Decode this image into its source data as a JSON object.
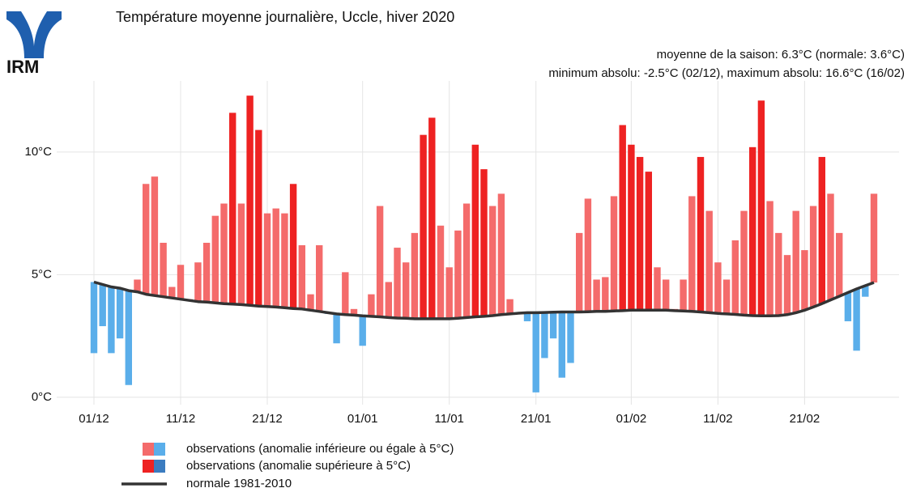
{
  "logo": {
    "text": "IRM",
    "color": "#1f5fae"
  },
  "chart_data": {
    "type": "floating-bar",
    "title": "Température moyenne journalière, Uccle, hiver 2020",
    "subtitle_lines": [
      "moyenne de la saison: 6.3°C (normale: 3.6°C)",
      "minimum absolu: -2.5°C (02/12), maximum absolu: 16.6°C (16/02)"
    ],
    "categories": [
      "01/12",
      null,
      null,
      null,
      null,
      null,
      null,
      null,
      null,
      null,
      "11/12",
      null,
      null,
      null,
      null,
      null,
      null,
      null,
      null,
      null,
      "21/12",
      null,
      null,
      null,
      null,
      null,
      null,
      null,
      null,
      null,
      null,
      "01/01",
      null,
      null,
      null,
      null,
      null,
      null,
      null,
      null,
      null,
      "11/01",
      null,
      null,
      null,
      null,
      null,
      null,
      null,
      null,
      null,
      "21/01",
      null,
      null,
      null,
      null,
      null,
      null,
      null,
      null,
      null,
      null,
      "01/02",
      null,
      null,
      null,
      null,
      null,
      null,
      null,
      null,
      null,
      "11/02",
      null,
      null,
      null,
      null,
      null,
      null,
      null,
      null,
      null,
      "21/02",
      null,
      null,
      null,
      null,
      null,
      null,
      null,
      null
    ],
    "anomaly_threshold": 5,
    "series": [
      {
        "name": "observations (anomalie inférieure ou égale à 5°C)",
        "colors": [
          "#f46b6b",
          "#5aaeea"
        ]
      },
      {
        "name": "observations (anomalie supérieure à 5°C)",
        "colors": [
          "#ee2222",
          "#3b7cc0"
        ]
      },
      {
        "name": "normale 1981-2010",
        "color": "#333333"
      }
    ],
    "observations": [
      1.8,
      2.9,
      1.8,
      2.4,
      0.5,
      4.8,
      8.7,
      9.0,
      6.3,
      4.5,
      5.4,
      4.0,
      5.5,
      6.3,
      7.4,
      7.9,
      11.6,
      7.9,
      12.3,
      10.9,
      7.5,
      7.7,
      7.5,
      8.7,
      6.2,
      4.2,
      6.2,
      3.4,
      2.2,
      5.1,
      3.6,
      2.1,
      4.2,
      7.8,
      4.7,
      6.1,
      5.5,
      6.7,
      10.7,
      11.4,
      7.0,
      5.3,
      6.8,
      7.9,
      10.3,
      9.3,
      7.8,
      8.3,
      4.0,
      3.4,
      3.1,
      0.2,
      1.6,
      2.4,
      0.8,
      1.4,
      6.7,
      8.1,
      4.8,
      4.9,
      8.2,
      11.1,
      10.3,
      9.8,
      9.2,
      5.3,
      4.8,
      3.6,
      4.8,
      8.2,
      9.8,
      7.6,
      5.5,
      4.8,
      6.4,
      7.6,
      10.2,
      12.1,
      8.0,
      6.7,
      5.8,
      7.6,
      6.0,
      7.8,
      9.8,
      8.3,
      6.7,
      3.1,
      1.9,
      4.1,
      8.3
    ],
    "normal": [
      4.7,
      4.6,
      4.5,
      4.45,
      4.35,
      4.3,
      4.2,
      4.15,
      4.1,
      4.05,
      4.0,
      3.95,
      3.9,
      3.88,
      3.85,
      3.82,
      3.8,
      3.78,
      3.75,
      3.72,
      3.7,
      3.68,
      3.65,
      3.62,
      3.6,
      3.55,
      3.5,
      3.45,
      3.4,
      3.37,
      3.35,
      3.32,
      3.3,
      3.28,
      3.25,
      3.23,
      3.22,
      3.2,
      3.2,
      3.2,
      3.2,
      3.2,
      3.22,
      3.25,
      3.28,
      3.3,
      3.33,
      3.37,
      3.4,
      3.43,
      3.45,
      3.45,
      3.46,
      3.47,
      3.48,
      3.48,
      3.48,
      3.49,
      3.5,
      3.5,
      3.52,
      3.53,
      3.55,
      3.55,
      3.55,
      3.55,
      3.55,
      3.53,
      3.52,
      3.5,
      3.48,
      3.45,
      3.42,
      3.4,
      3.38,
      3.35,
      3.33,
      3.32,
      3.32,
      3.33,
      3.37,
      3.45,
      3.55,
      3.68,
      3.82,
      3.97,
      4.12,
      4.27,
      4.42,
      4.55,
      4.68
    ],
    "ylim": [
      -0.3,
      12.9
    ],
    "yticks": [
      {
        "value": 0,
        "label": "0°C"
      },
      {
        "value": 5,
        "label": "5°C"
      },
      {
        "value": 10,
        "label": "10°C"
      }
    ],
    "grid": true
  }
}
